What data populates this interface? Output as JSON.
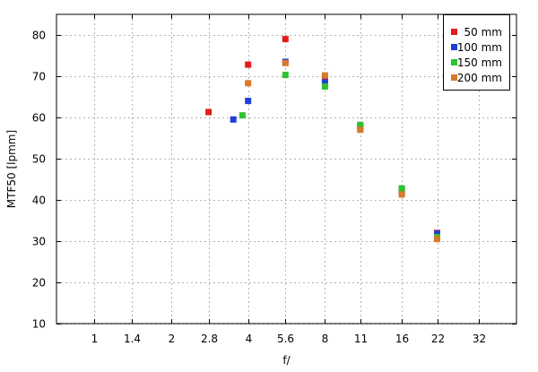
{
  "chart_data": {
    "type": "scatter",
    "xlabel": "f/",
    "ylabel": "MTF50 [lpmm]",
    "x_scale": "log2",
    "x_ticks": [
      1,
      1.4,
      2,
      2.8,
      4,
      5.6,
      8,
      11,
      16,
      22,
      32
    ],
    "x_tick_labels": [
      "1",
      "1.4",
      "2",
      "2.8",
      "4",
      "5.6",
      "8",
      "11",
      "16",
      "22",
      "32"
    ],
    "xlim": [
      0.71,
      45
    ],
    "ylim": [
      10,
      85
    ],
    "y_ticks": [
      10,
      20,
      30,
      40,
      50,
      60,
      70,
      80
    ],
    "grid": true,
    "legend_position": "top-right",
    "series": [
      {
        "name": "50 mm",
        "color": "#e41a1c",
        "points": [
          {
            "x": 2.8,
            "y": 61.3
          },
          {
            "x": 4.0,
            "y": 72.8
          },
          {
            "x": 5.6,
            "y": 79.0
          },
          {
            "x": 8.0,
            "y": 69.5
          },
          {
            "x": 11.0,
            "y": 57.5
          },
          {
            "x": 16.0,
            "y": 42.0
          },
          {
            "x": 22.0,
            "y": 32.0
          }
        ]
      },
      {
        "name": "100 mm",
        "color": "#1e3fd6",
        "points": [
          {
            "x": 3.5,
            "y": 59.5
          },
          {
            "x": 4.0,
            "y": 64.0
          },
          {
            "x": 5.6,
            "y": 73.5
          },
          {
            "x": 8.0,
            "y": 68.5
          },
          {
            "x": 11.0,
            "y": 57.8
          },
          {
            "x": 16.0,
            "y": 42.3
          },
          {
            "x": 22.0,
            "y": 31.8
          }
        ]
      },
      {
        "name": "150 mm",
        "color": "#2ec22e",
        "points": [
          {
            "x": 3.8,
            "y": 60.5
          },
          {
            "x": 5.6,
            "y": 70.3
          },
          {
            "x": 8.0,
            "y": 67.5
          },
          {
            "x": 11.0,
            "y": 58.2
          },
          {
            "x": 16.0,
            "y": 42.8
          },
          {
            "x": 22.0,
            "y": 31.0
          }
        ]
      },
      {
        "name": "200 mm",
        "color": "#d77a29",
        "points": [
          {
            "x": 4.0,
            "y": 68.3
          },
          {
            "x": 5.6,
            "y": 73.2
          },
          {
            "x": 8.0,
            "y": 70.2
          },
          {
            "x": 11.0,
            "y": 57.0
          },
          {
            "x": 16.0,
            "y": 41.3
          },
          {
            "x": 22.0,
            "y": 30.5
          }
        ]
      }
    ]
  }
}
